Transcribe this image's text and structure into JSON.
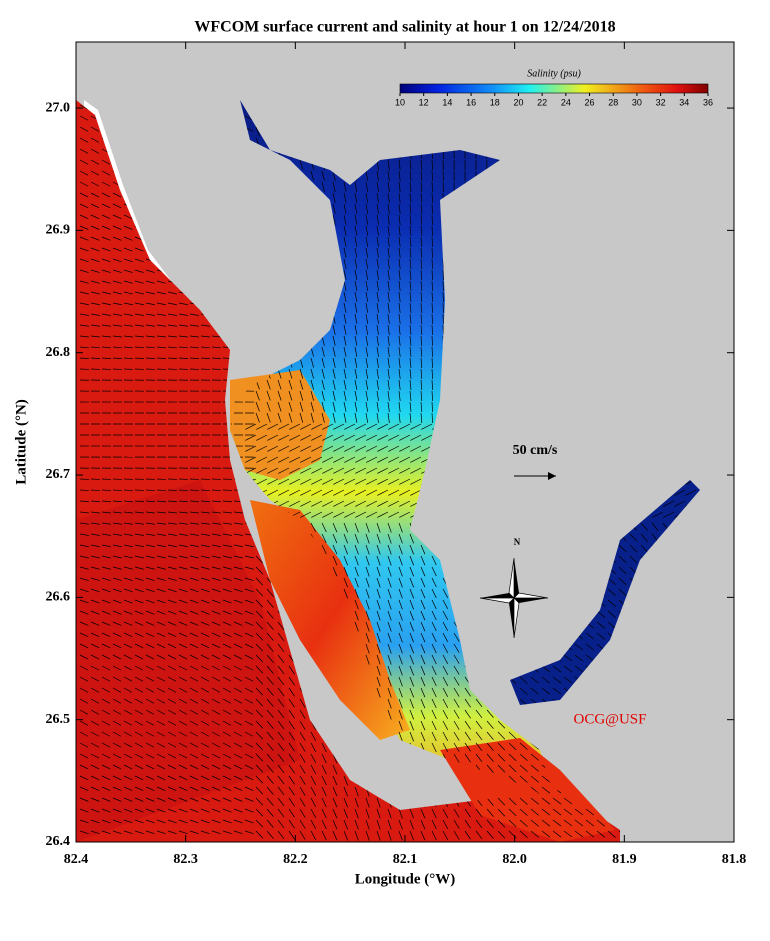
{
  "title": "WFCOM surface current and salinity at hour 1 on 12/24/2018",
  "x_axis": {
    "label": "Longitude (°W)",
    "range": [
      82.4,
      81.8
    ],
    "ticks": [
      82.4,
      82.3,
      82.2,
      82.1,
      {
        "value": 82,
        "label": "82.0"
      },
      81.9,
      81.8
    ]
  },
  "y_axis": {
    "label": "Latitude (°N)",
    "range": [
      26.4,
      27.054
    ],
    "ticks": [
      26.4,
      26.5,
      26.6,
      26.7,
      26.8,
      26.9,
      {
        "value": 27,
        "label": "27.0"
      }
    ]
  },
  "colorbar": {
    "title": "Salinity (psu)",
    "range": [
      10,
      36
    ],
    "ticks": [
      10,
      12,
      14,
      16,
      18,
      20,
      22,
      24,
      26,
      28,
      30,
      32,
      34,
      36
    ]
  },
  "scale_label": "50 cm/s",
  "north_label": "N",
  "credit": "OCG@USF"
}
